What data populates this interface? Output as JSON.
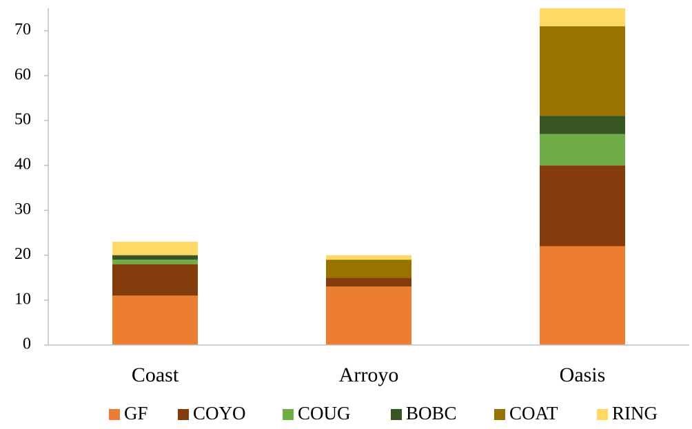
{
  "chart_data": {
    "type": "stacked_bar",
    "categories": [
      "Coast",
      "Arroyo",
      "Oasis"
    ],
    "series": [
      {
        "name": "GF",
        "color": "#ED7D31",
        "values": [
          11,
          13,
          22
        ]
      },
      {
        "name": "COYO",
        "color": "#843C0C",
        "values": [
          7,
          2,
          18
        ]
      },
      {
        "name": "COUG",
        "color": "#70AD47",
        "values": [
          1,
          0,
          7
        ]
      },
      {
        "name": "BOBC",
        "color": "#375623",
        "values": [
          1,
          0,
          4
        ]
      },
      {
        "name": "COAT",
        "color": "#997300",
        "values": [
          0,
          4,
          20
        ]
      },
      {
        "name": "RING",
        "color": "#FFD966",
        "values": [
          3,
          1,
          4
        ]
      }
    ],
    "ylim": [
      0,
      75
    ],
    "yticks": [
      0,
      10,
      20,
      30,
      40,
      50,
      60,
      70
    ],
    "legend": "bottom"
  }
}
